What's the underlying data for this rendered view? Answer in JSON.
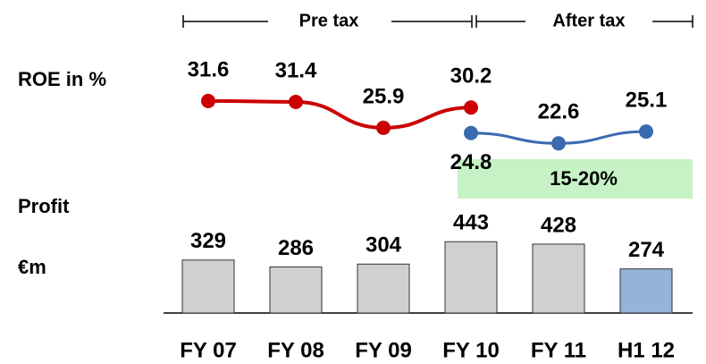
{
  "chart_data": [
    {
      "type": "line",
      "title": "ROE in %",
      "series": [
        {
          "name": "Pre tax",
          "color": "#cc0000",
          "values": [
            31.6,
            31.4,
            25.9,
            30.2,
            null,
            null
          ]
        },
        {
          "name": "After tax",
          "color": "#3a6ab0",
          "values": [
            null,
            null,
            null,
            24.8,
            22.6,
            25.1
          ]
        }
      ],
      "ylim": [
        20,
        35
      ],
      "annotations": [
        "15-20%"
      ]
    },
    {
      "type": "bar",
      "title": "Profit",
      "subtitle": "€m",
      "categories": [
        "FY 07",
        "FY 08",
        "FY 09",
        "FY 10",
        "FY 11",
        "H1 12"
      ],
      "values": [
        329,
        286,
        304,
        443,
        428,
        274
      ],
      "colors": [
        "#d0d0d0",
        "#d0d0d0",
        "#d0d0d0",
        "#d0d0d0",
        "#d0d0d0",
        "#95b3d7"
      ],
      "ylim": [
        0,
        500
      ]
    }
  ]
}
